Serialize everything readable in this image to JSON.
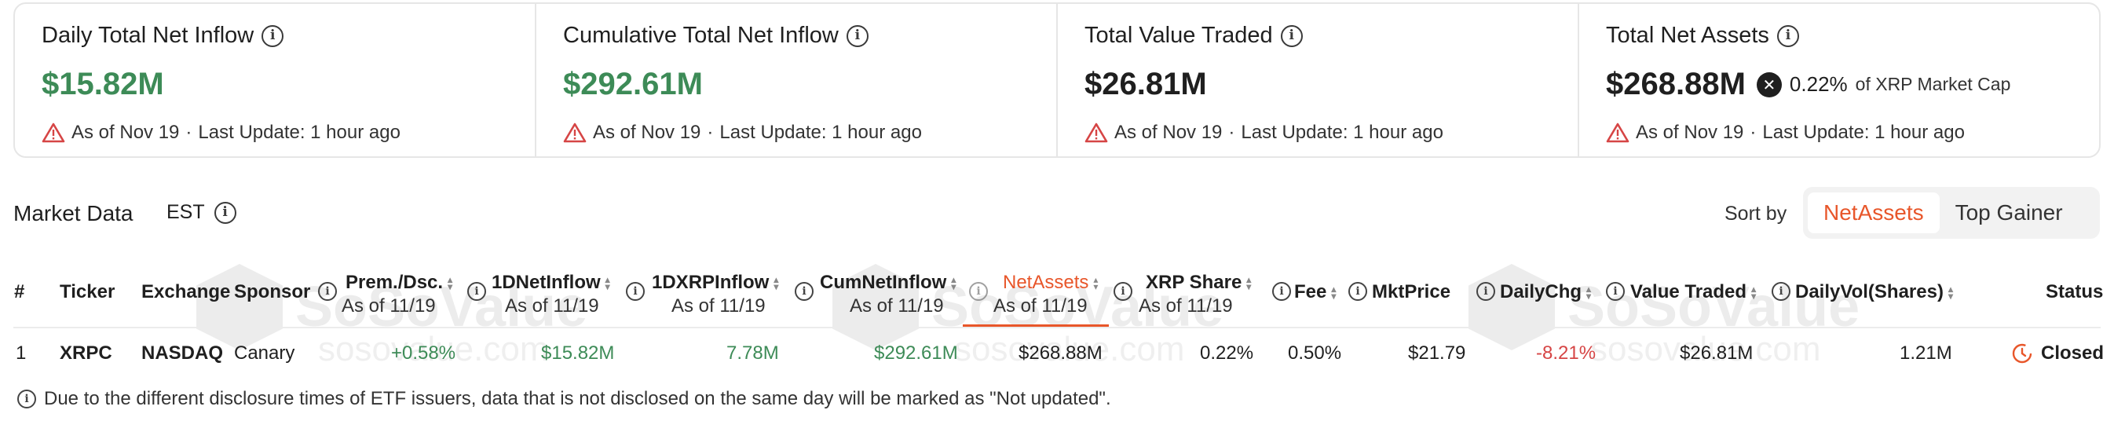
{
  "cards": [
    {
      "title": "Daily Total Net Inflow",
      "value": "$15.82M",
      "as_of": "As of Nov 19",
      "last_update": "Last Update: 1 hour ago"
    },
    {
      "title": "Cumulative Total Net Inflow",
      "value": "$292.61M",
      "as_of": "As of Nov 19",
      "last_update": "Last Update: 1 hour ago"
    },
    {
      "title": "Total Value Traded",
      "value": "$26.81M",
      "as_of": "As of Nov 19",
      "last_update": "Last Update: 1 hour ago"
    },
    {
      "title": "Total Net Assets",
      "value": "$268.88M",
      "pct": "0.22%",
      "pct_label": "of XRP Market Cap",
      "as_of": "As of Nov 19",
      "last_update": "Last Update: 1 hour ago"
    }
  ],
  "market": {
    "title": "Market Data",
    "timezone": "EST",
    "sort_label": "Sort by",
    "sort_options": [
      "NetAssets",
      "Top Gainer"
    ],
    "active_sort": "NetAssets"
  },
  "table": {
    "headers": {
      "num": "#",
      "ticker": "Ticker",
      "exchange": "Exchange",
      "sponsor": "Sponsor",
      "prem": "Prem./Dsc.",
      "inflow_1d": "1DNetInflow",
      "xrp_inflow_1d": "1DXRPInflow",
      "cum_inflow": "CumNetInflow",
      "net_assets": "NetAssets",
      "xrp_share": "XRP Share",
      "fee": "Fee",
      "mkt_price": "MktPrice",
      "daily_chg": "DailyChg",
      "value_traded": "Value Traded",
      "daily_vol": "DailyVol(Shares)",
      "status": "Status",
      "as_of": "As of 11/19"
    },
    "rows": [
      {
        "num": "1",
        "ticker": "XRPC",
        "exchange": "NASDAQ",
        "sponsor": "Canary",
        "prem": "+0.58%",
        "inflow_1d": "$15.82M",
        "xrp_inflow_1d": "7.78M",
        "cum_inflow": "$292.61M",
        "net_assets": "$268.88M",
        "xrp_share": "0.22%",
        "fee": "0.50%",
        "mkt_price": "$21.79",
        "daily_chg": "-8.21%",
        "value_traded": "$26.81M",
        "daily_vol": "1.21M",
        "status": "Closed"
      }
    ]
  },
  "footnote": "Due to the different disclosure times of ETF issuers, data that is not disclosed on the same day will be marked as \"Not updated\".",
  "watermark": {
    "word": "SoSoValue",
    "url": "sosovalue.com"
  },
  "colors": {
    "accent": "#e8562a",
    "positive": "#3d8b57",
    "negative": "#d64545",
    "warning": "#d64545"
  }
}
